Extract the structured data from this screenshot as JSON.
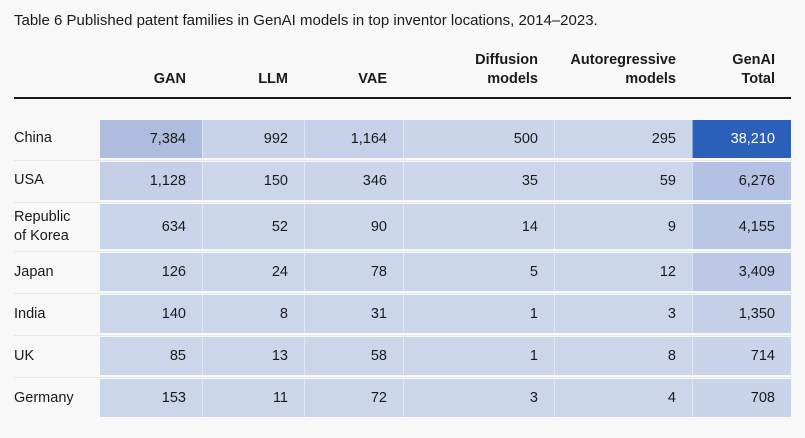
{
  "page": {
    "background": "#f8f8f8"
  },
  "title": "Table 6 Published patent families in GenAI models in top inventor locations, 2014–2023.",
  "chart_data": {
    "type": "table",
    "title": "Table 6 Published patent families in GenAI models in top inventor locations, 2014–2023.",
    "columns": [
      "GAN",
      "LLM",
      "VAE",
      "Diffusion models",
      "Autoregressive models",
      "GenAI Total"
    ],
    "column_header_display": [
      "GAN",
      "LLM",
      "VAE",
      "Diffusion\nmodels",
      "Autoregressive\nmodels",
      "GenAI\nTotal"
    ],
    "heatmap_colors": {
      "base": "#ccd6eb",
      "max": "#2b60ba",
      "header_rule": "#1a1a1a",
      "text": "#1a1a1a",
      "max_text": "#ffffff"
    },
    "rows": [
      {
        "location": "China",
        "display": [
          "7,384",
          "992",
          "1,164",
          "500",
          "295",
          "38,210"
        ],
        "values": [
          7384,
          992,
          1164,
          500,
          295,
          38210
        ],
        "cell_colors": [
          "#aebdde",
          "#c8d2e9",
          "#c6d0e8",
          "#cbd5ea",
          "#ccd6eb",
          "#2b60ba"
        ],
        "text_colors": [
          "#1a1a1a",
          "#1a1a1a",
          "#1a1a1a",
          "#1a1a1a",
          "#1a1a1a",
          "#ffffff"
        ]
      },
      {
        "location": "USA",
        "display": [
          "1,128",
          "150",
          "346",
          "35",
          "59",
          "6,276"
        ],
        "values": [
          1128,
          150,
          346,
          35,
          59,
          6276
        ],
        "cell_colors": [
          "#c5cfe8",
          "#ccd6eb",
          "#cbd5ea",
          "#ccd6eb",
          "#ccd6eb",
          "#b4c1e2"
        ],
        "text_colors": [
          "#1a1a1a",
          "#1a1a1a",
          "#1a1a1a",
          "#1a1a1a",
          "#1a1a1a",
          "#1a1a1a"
        ]
      },
      {
        "location": "Republic of Korea",
        "display": [
          "634",
          "52",
          "90",
          "14",
          "9",
          "4,155"
        ],
        "values": [
          634,
          52,
          90,
          14,
          9,
          4155
        ],
        "cell_colors": [
          "#cad4ea",
          "#ccd6eb",
          "#ccd6eb",
          "#ccd6eb",
          "#ccd6eb",
          "#b9c6e4"
        ],
        "text_colors": [
          "#1a1a1a",
          "#1a1a1a",
          "#1a1a1a",
          "#1a1a1a",
          "#1a1a1a",
          "#1a1a1a"
        ]
      },
      {
        "location": "Japan",
        "display": [
          "126",
          "24",
          "78",
          "5",
          "12",
          "3,409"
        ],
        "values": [
          126,
          24,
          78,
          5,
          12,
          3409
        ],
        "cell_colors": [
          "#ccd6eb",
          "#ccd6eb",
          "#ccd6eb",
          "#ccd6eb",
          "#ccd6eb",
          "#bcc8e5"
        ],
        "text_colors": [
          "#1a1a1a",
          "#1a1a1a",
          "#1a1a1a",
          "#1a1a1a",
          "#1a1a1a",
          "#1a1a1a"
        ]
      },
      {
        "location": "India",
        "display": [
          "140",
          "8",
          "31",
          "1",
          "3",
          "1,350"
        ],
        "values": [
          140,
          8,
          31,
          1,
          3,
          1350
        ],
        "cell_colors": [
          "#ccd6eb",
          "#ccd6eb",
          "#ccd6eb",
          "#ccd6eb",
          "#ccd6eb",
          "#c5cfe8"
        ],
        "text_colors": [
          "#1a1a1a",
          "#1a1a1a",
          "#1a1a1a",
          "#1a1a1a",
          "#1a1a1a",
          "#1a1a1a"
        ]
      },
      {
        "location": "UK",
        "display": [
          "85",
          "13",
          "58",
          "1",
          "8",
          "714"
        ],
        "values": [
          85,
          13,
          58,
          1,
          8,
          714
        ],
        "cell_colors": [
          "#ccd6eb",
          "#ccd6eb",
          "#ccd6eb",
          "#ccd6eb",
          "#ccd6eb",
          "#c9d3ea"
        ],
        "text_colors": [
          "#1a1a1a",
          "#1a1a1a",
          "#1a1a1a",
          "#1a1a1a",
          "#1a1a1a",
          "#1a1a1a"
        ]
      },
      {
        "location": "Germany",
        "display": [
          "153",
          "11",
          "72",
          "3",
          "4",
          "708"
        ],
        "values": [
          153,
          11,
          72,
          3,
          4,
          708
        ],
        "cell_colors": [
          "#ccd6eb",
          "#ccd6eb",
          "#ccd6eb",
          "#ccd6eb",
          "#ccd6eb",
          "#c9d3ea"
        ],
        "text_colors": [
          "#1a1a1a",
          "#1a1a1a",
          "#1a1a1a",
          "#1a1a1a",
          "#1a1a1a",
          "#1a1a1a"
        ]
      }
    ]
  }
}
